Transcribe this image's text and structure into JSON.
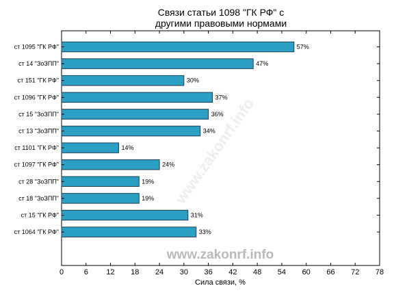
{
  "chart_data": {
    "type": "bar",
    "orientation": "horizontal",
    "title": [
      "Связи статьи 1098 \"ГК РФ\" с",
      "другими правовыми нормами"
    ],
    "xlabel": "Сила связи, %",
    "ylabel": "",
    "categories": [
      "ст 1095 \"ГК РФ\"",
      "ст 14 \"ЗоЗПП\"",
      "ст 151 \"ГК РФ\"",
      "ст 1096 \"ГК РФ\"",
      "ст 15 \"ЗоЗПП\"",
      "ст 13 \"ЗоЗПП\"",
      "ст 1101 \"ГК РФ\"",
      "ст 1097 \"ГК РФ\"",
      "ст 28 \"ЗоЗПП\"",
      "ст 18 \"ЗоЗПП\"",
      "ст 15 \"ГК РФ\"",
      "ст 1064 \"ГК РФ\""
    ],
    "values": [
      57,
      47,
      30,
      37,
      36,
      34,
      14,
      24,
      19,
      19,
      31,
      33
    ],
    "value_labels": [
      "57%",
      "47%",
      "30%",
      "37%",
      "36%",
      "34%",
      "14%",
      "24%",
      "19%",
      "19%",
      "31%",
      "33%"
    ],
    "xlim": [
      0,
      78
    ],
    "xticks": [
      0,
      6,
      12,
      18,
      24,
      30,
      36,
      42,
      48,
      54,
      60,
      66,
      72,
      78
    ],
    "grid": false,
    "bar_color": "#2b9fc4",
    "bar_edge_color": "#1a3e55"
  },
  "watermark": {
    "text": "www.zakonrf.info",
    "color": "#b9b9b9"
  }
}
